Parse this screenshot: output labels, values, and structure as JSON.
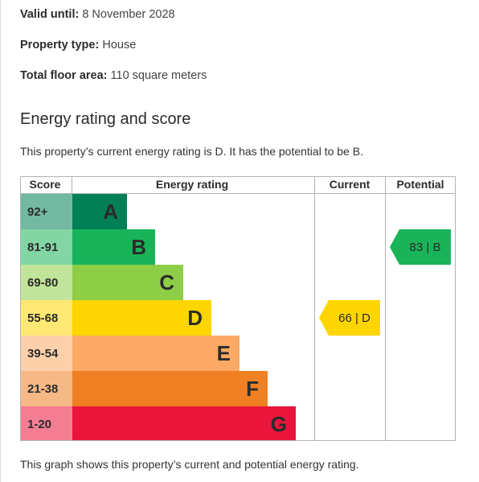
{
  "info": {
    "valid_label": "Valid until:",
    "valid_value": "8 November 2028",
    "type_label": "Property type:",
    "type_value": "House",
    "area_label": "Total floor area:",
    "area_value": "110 square meters"
  },
  "heading": "Energy rating and score",
  "summary": "This property’s current energy rating is D. It has the potential to be B.",
  "footer": "This graph shows this property’s current and potential energy rating.",
  "chart_data": {
    "type": "table",
    "headers": {
      "score": "Score",
      "rating": "Energy rating",
      "current": "Current",
      "potential": "Potential"
    },
    "bands": [
      {
        "score": "92+",
        "letter": "A",
        "color": "#008054",
        "text_color": "#2b2b2b",
        "level": 1
      },
      {
        "score": "81-91",
        "letter": "B",
        "color": "#19b459",
        "level": 2
      },
      {
        "score": "69-80",
        "letter": "C",
        "color": "#8dce46",
        "level": 3
      },
      {
        "score": "55-68",
        "letter": "D",
        "color": "#ffd500",
        "level": 4
      },
      {
        "score": "39-54",
        "letter": "E",
        "color": "#fcaa65",
        "level": 5
      },
      {
        "score": "21-38",
        "letter": "F",
        "color": "#ef8023",
        "level": 6
      },
      {
        "score": "1-20",
        "letter": "G",
        "color": "#e9153b",
        "level": 7
      }
    ],
    "current": {
      "score": 66,
      "band": "D",
      "label": "66 | D",
      "color": "#ffd500"
    },
    "potential": {
      "score": 83,
      "band": "B",
      "label": "83 | B",
      "color": "#19b459"
    }
  }
}
